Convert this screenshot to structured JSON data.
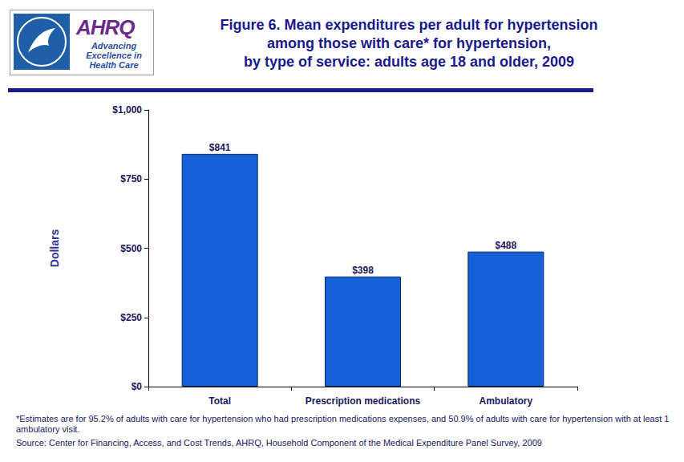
{
  "logo": {
    "name": "AHRQ",
    "tagline": "Advancing Excellence in Health Care"
  },
  "chart_data": {
    "type": "bar",
    "title": "Figure 6. Mean expenditures per adult for hypertension\namong those with care* for hypertension,\nby type of service: adults age 18 and older, 2009",
    "y_label": "Dollars",
    "categories": [
      "Total",
      "Prescription medications",
      "Ambulatory"
    ],
    "values": [
      841,
      398,
      488
    ],
    "value_labels": [
      "$841",
      "$398",
      "$488"
    ],
    "color": "#1560d4",
    "ylim": [
      0,
      1000
    ],
    "yticks": [
      {
        "value": 0,
        "label": "$0"
      },
      {
        "value": 250,
        "label": "$250"
      },
      {
        "value": 500,
        "label": "$500"
      },
      {
        "value": 750,
        "label": "$750"
      },
      {
        "value": 1000,
        "label": "$1,000"
      }
    ],
    "grid": false,
    "data_labels": true,
    "annotations": [
      "*Estimates are for 95.2% of adults with care for hypertension who had prescription medications expenses, and 50.9% of adults with care for hypertension with at least 1 ambulatory visit.",
      "Source: Center for Financing, Access, and Cost Trends, AHRQ, Household Component of the Medical Expenditure Panel Survey,  2009"
    ]
  }
}
